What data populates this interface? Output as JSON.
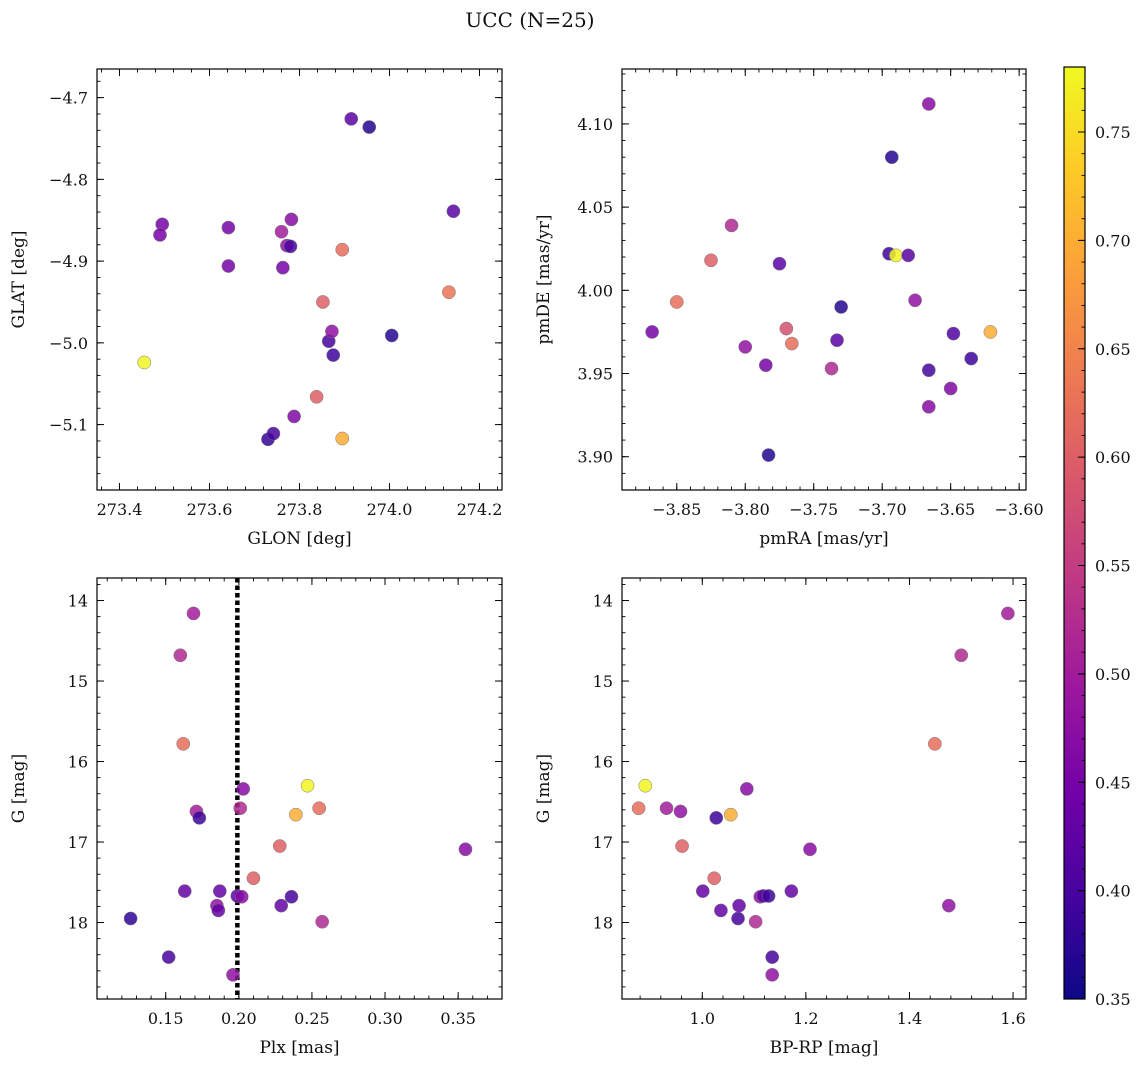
{
  "figure": {
    "title": "UCC (N=25)"
  },
  "colormap": {
    "name": "plasma",
    "range": [
      0.35,
      0.78
    ],
    "ticks": [
      0.35,
      0.4,
      0.45,
      0.5,
      0.55,
      0.6,
      0.65,
      0.7,
      0.75
    ],
    "tick_labels": [
      "0.35",
      "0.40",
      "0.45",
      "0.50",
      "0.55",
      "0.60",
      "0.65",
      "0.70",
      "0.75"
    ],
    "stops": [
      "#0d0887",
      "#46039f",
      "#7201a8",
      "#9c179e",
      "#bd3786",
      "#d8576b",
      "#ed7953",
      "#fb9f3a",
      "#fdca26",
      "#f0f921"
    ]
  },
  "chart_data": [
    {
      "type": "scatter",
      "title": "",
      "xlabel": "GLON [deg]",
      "ylabel": "GLAT [deg]",
      "xlim": [
        273.35,
        274.25
      ],
      "ylim": [
        -5.18,
        -4.665
      ],
      "xticks": [
        273.4,
        273.6,
        273.8,
        274.0,
        274.2
      ],
      "xtick_labels": [
        "273.4",
        "273.6",
        "273.8",
        "274.0",
        "274.2"
      ],
      "yticks": [
        -4.7,
        -4.8,
        -4.9,
        -5.0,
        -5.1
      ],
      "ytick_labels": [
        "−4.7",
        "−4.8",
        "−4.9",
        "−5.0",
        "−5.1"
      ],
      "points": [
        {
          "x": 273.455,
          "y": -5.024,
          "c": 0.775
        },
        {
          "x": 273.495,
          "y": -4.855,
          "c": 0.45
        },
        {
          "x": 273.49,
          "y": -4.868,
          "c": 0.45
        },
        {
          "x": 273.642,
          "y": -4.859,
          "c": 0.45
        },
        {
          "x": 273.642,
          "y": -4.906,
          "c": 0.45
        },
        {
          "x": 273.73,
          "y": -5.118,
          "c": 0.38
        },
        {
          "x": 273.742,
          "y": -5.111,
          "c": 0.4
        },
        {
          "x": 273.76,
          "y": -4.864,
          "c": 0.5
        },
        {
          "x": 273.763,
          "y": -4.908,
          "c": 0.45
        },
        {
          "x": 273.772,
          "y": -4.881,
          "c": 0.48
        },
        {
          "x": 273.78,
          "y": -4.882,
          "c": 0.4
        },
        {
          "x": 273.782,
          "y": -4.849,
          "c": 0.47
        },
        {
          "x": 273.788,
          "y": -5.09,
          "c": 0.46
        },
        {
          "x": 273.838,
          "y": -5.066,
          "c": 0.6
        },
        {
          "x": 273.852,
          "y": -4.95,
          "c": 0.6
        },
        {
          "x": 273.865,
          "y": -4.998,
          "c": 0.4
        },
        {
          "x": 273.872,
          "y": -4.986,
          "c": 0.48
        },
        {
          "x": 273.875,
          "y": -5.015,
          "c": 0.39
        },
        {
          "x": 273.895,
          "y": -4.886,
          "c": 0.62
        },
        {
          "x": 273.895,
          "y": -5.117,
          "c": 0.7
        },
        {
          "x": 273.915,
          "y": -4.726,
          "c": 0.42
        },
        {
          "x": 273.955,
          "y": -4.736,
          "c": 0.37
        },
        {
          "x": 274.005,
          "y": -4.991,
          "c": 0.37
        },
        {
          "x": 274.132,
          "y": -4.938,
          "c": 0.63
        },
        {
          "x": 274.142,
          "y": -4.839,
          "c": 0.42
        }
      ]
    },
    {
      "type": "scatter",
      "title": "",
      "xlabel": "pmRA [mas/yr]",
      "ylabel": "pmDE [mas/yr]",
      "xlim": [
        -3.89,
        -3.595
      ],
      "ylim": [
        3.88,
        4.133
      ],
      "xticks": [
        -3.85,
        -3.8,
        -3.75,
        -3.7,
        -3.65,
        -3.6
      ],
      "xtick_labels": [
        "−3.85",
        "−3.80",
        "−3.75",
        "−3.70",
        "−3.65",
        "−3.60"
      ],
      "yticks": [
        3.9,
        3.95,
        4.0,
        4.05,
        4.1
      ],
      "ytick_labels": [
        "3.90",
        "3.95",
        "4.00",
        "4.05",
        "4.10"
      ],
      "points": [
        {
          "x": -3.868,
          "y": 3.975,
          "c": 0.45
        },
        {
          "x": -3.85,
          "y": 3.993,
          "c": 0.62
        },
        {
          "x": -3.825,
          "y": 4.018,
          "c": 0.6
        },
        {
          "x": -3.81,
          "y": 4.039,
          "c": 0.52
        },
        {
          "x": -3.8,
          "y": 3.966,
          "c": 0.48
        },
        {
          "x": -3.785,
          "y": 3.955,
          "c": 0.45
        },
        {
          "x": -3.783,
          "y": 3.901,
          "c": 0.37
        },
        {
          "x": -3.775,
          "y": 4.016,
          "c": 0.42
        },
        {
          "x": -3.77,
          "y": 3.977,
          "c": 0.58
        },
        {
          "x": -3.766,
          "y": 3.968,
          "c": 0.62
        },
        {
          "x": -3.737,
          "y": 3.953,
          "c": 0.52
        },
        {
          "x": -3.733,
          "y": 3.97,
          "c": 0.42
        },
        {
          "x": -3.73,
          "y": 3.99,
          "c": 0.37
        },
        {
          "x": -3.695,
          "y": 4.022,
          "c": 0.39
        },
        {
          "x": -3.693,
          "y": 4.08,
          "c": 0.37
        },
        {
          "x": -3.69,
          "y": 4.021,
          "c": 0.775
        },
        {
          "x": -3.681,
          "y": 4.021,
          "c": 0.42
        },
        {
          "x": -3.676,
          "y": 3.994,
          "c": 0.48
        },
        {
          "x": -3.666,
          "y": 4.112,
          "c": 0.47
        },
        {
          "x": -3.666,
          "y": 3.952,
          "c": 0.4
        },
        {
          "x": -3.666,
          "y": 3.93,
          "c": 0.47
        },
        {
          "x": -3.65,
          "y": 3.941,
          "c": 0.46
        },
        {
          "x": -3.648,
          "y": 3.974,
          "c": 0.41
        },
        {
          "x": -3.635,
          "y": 3.959,
          "c": 0.39
        },
        {
          "x": -3.621,
          "y": 3.975,
          "c": 0.7
        }
      ]
    },
    {
      "type": "scatter",
      "title": "",
      "xlabel": "Plx [mas]",
      "ylabel": "G [mag]",
      "xlim": [
        0.103,
        0.38
      ],
      "ylim": [
        18.95,
        13.72
      ],
      "xticks": [
        0.15,
        0.2,
        0.25,
        0.3,
        0.35
      ],
      "xtick_labels": [
        "0.15",
        "0.20",
        "0.25",
        "0.30",
        "0.35"
      ],
      "yticks": [
        14,
        15,
        16,
        17,
        18
      ],
      "ytick_labels": [
        "14",
        "15",
        "16",
        "17",
        "18"
      ],
      "vline": {
        "x": 0.199,
        "style": "dotted"
      },
      "points": [
        {
          "x": 0.126,
          "y": 17.95,
          "c": 0.38
        },
        {
          "x": 0.152,
          "y": 18.43,
          "c": 0.4
        },
        {
          "x": 0.16,
          "y": 14.68,
          "c": 0.52
        },
        {
          "x": 0.162,
          "y": 15.78,
          "c": 0.62
        },
        {
          "x": 0.163,
          "y": 17.61,
          "c": 0.43
        },
        {
          "x": 0.169,
          "y": 14.16,
          "c": 0.5
        },
        {
          "x": 0.171,
          "y": 16.62,
          "c": 0.5
        },
        {
          "x": 0.173,
          "y": 16.7,
          "c": 0.39
        },
        {
          "x": 0.185,
          "y": 17.79,
          "c": 0.48
        },
        {
          "x": 0.186,
          "y": 17.85,
          "c": 0.43
        },
        {
          "x": 0.187,
          "y": 17.61,
          "c": 0.43
        },
        {
          "x": 0.196,
          "y": 18.65,
          "c": 0.48
        },
        {
          "x": 0.199,
          "y": 17.67,
          "c": 0.42
        },
        {
          "x": 0.201,
          "y": 16.58,
          "c": 0.52
        },
        {
          "x": 0.202,
          "y": 17.68,
          "c": 0.47
        },
        {
          "x": 0.203,
          "y": 16.34,
          "c": 0.47
        },
        {
          "x": 0.21,
          "y": 17.45,
          "c": 0.6
        },
        {
          "x": 0.228,
          "y": 17.05,
          "c": 0.6
        },
        {
          "x": 0.229,
          "y": 17.79,
          "c": 0.43
        },
        {
          "x": 0.236,
          "y": 17.68,
          "c": 0.4
        },
        {
          "x": 0.239,
          "y": 16.66,
          "c": 0.7
        },
        {
          "x": 0.247,
          "y": 16.3,
          "c": 0.775
        },
        {
          "x": 0.255,
          "y": 16.58,
          "c": 0.62
        },
        {
          "x": 0.257,
          "y": 17.99,
          "c": 0.52
        },
        {
          "x": 0.355,
          "y": 17.09,
          "c": 0.47
        }
      ]
    },
    {
      "type": "scatter",
      "title": "",
      "xlabel": "BP-RP [mag]",
      "ylabel": "G [mag]",
      "xlim": [
        0.845,
        1.625
      ],
      "ylim": [
        18.95,
        13.72
      ],
      "xticks": [
        1.0,
        1.2,
        1.4,
        1.6
      ],
      "xtick_labels": [
        "1.0",
        "1.2",
        "1.4",
        "1.6"
      ],
      "yticks": [
        14,
        15,
        16,
        17,
        18
      ],
      "ytick_labels": [
        "14",
        "15",
        "16",
        "17",
        "18"
      ],
      "points": [
        {
          "x": 0.877,
          "y": 16.58,
          "c": 0.62
        },
        {
          "x": 0.89,
          "y": 16.3,
          "c": 0.775
        },
        {
          "x": 0.931,
          "y": 16.58,
          "c": 0.5
        },
        {
          "x": 0.958,
          "y": 16.62,
          "c": 0.48
        },
        {
          "x": 0.961,
          "y": 17.05,
          "c": 0.6
        },
        {
          "x": 1.001,
          "y": 17.61,
          "c": 0.43
        },
        {
          "x": 1.023,
          "y": 17.45,
          "c": 0.6
        },
        {
          "x": 1.027,
          "y": 16.7,
          "c": 0.39
        },
        {
          "x": 1.036,
          "y": 17.85,
          "c": 0.43
        },
        {
          "x": 1.055,
          "y": 16.66,
          "c": 0.7
        },
        {
          "x": 1.069,
          "y": 17.95,
          "c": 0.4
        },
        {
          "x": 1.071,
          "y": 17.79,
          "c": 0.43
        },
        {
          "x": 1.086,
          "y": 16.34,
          "c": 0.47
        },
        {
          "x": 1.103,
          "y": 17.99,
          "c": 0.52
        },
        {
          "x": 1.112,
          "y": 17.68,
          "c": 0.47
        },
        {
          "x": 1.118,
          "y": 17.67,
          "c": 0.42
        },
        {
          "x": 1.128,
          "y": 17.67,
          "c": 0.39
        },
        {
          "x": 1.135,
          "y": 18.43,
          "c": 0.4
        },
        {
          "x": 1.135,
          "y": 18.65,
          "c": 0.48
        },
        {
          "x": 1.172,
          "y": 17.61,
          "c": 0.43
        },
        {
          "x": 1.208,
          "y": 17.09,
          "c": 0.47
        },
        {
          "x": 1.449,
          "y": 15.78,
          "c": 0.62
        },
        {
          "x": 1.476,
          "y": 17.79,
          "c": 0.48
        },
        {
          "x": 1.5,
          "y": 14.68,
          "c": 0.52
        },
        {
          "x": 1.59,
          "y": 14.16,
          "c": 0.5
        }
      ]
    }
  ]
}
